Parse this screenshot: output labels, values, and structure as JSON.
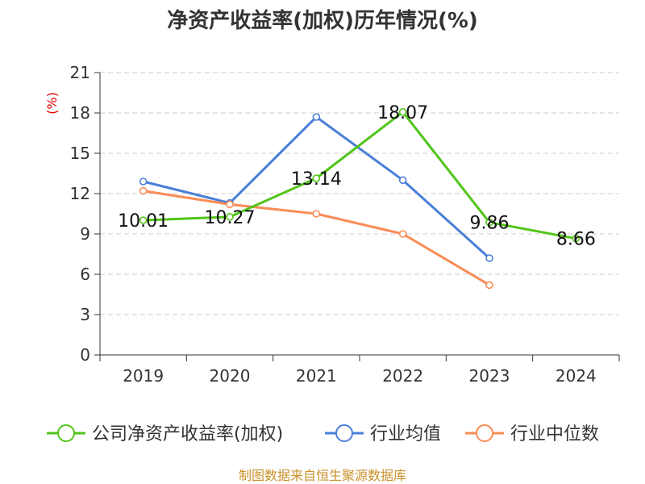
{
  "chart_data": {
    "type": "line",
    "title": "净资产收益率(加权)历年情况(%)",
    "ylabel": "(%)",
    "xlabel": "",
    "categories": [
      "2019",
      "2020",
      "2021",
      "2022",
      "2023",
      "2024"
    ],
    "ylim": [
      0,
      21
    ],
    "yticks": [
      0,
      3,
      6,
      9,
      12,
      15,
      18,
      21
    ],
    "grid": true,
    "legend_position": "bottom",
    "series": [
      {
        "name": "公司净资产收益率(加权)",
        "color": "#52c41a",
        "values": [
          10.01,
          10.27,
          13.14,
          18.07,
          9.86,
          8.66
        ],
        "labels": [
          "10.01",
          "10.27",
          "13.14",
          "18.07",
          "9.86",
          "8.66"
        ]
      },
      {
        "name": "行业均值",
        "color": "#4a7fd8",
        "values": [
          12.9,
          11.3,
          17.7,
          13.0,
          7.2,
          null
        ]
      },
      {
        "name": "行业中位数",
        "color": "#f98c56",
        "values": [
          12.2,
          11.2,
          10.5,
          9.0,
          5.2,
          null
        ]
      }
    ]
  },
  "source": "制图数据来自恒生聚源数据库"
}
